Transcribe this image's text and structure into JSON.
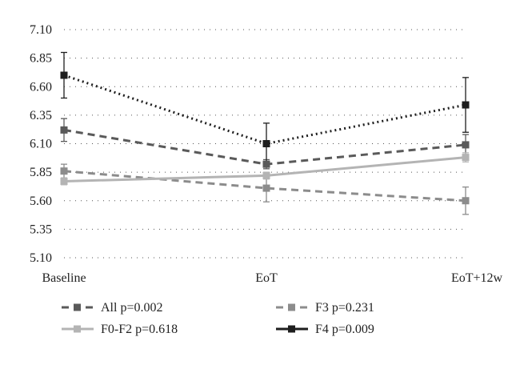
{
  "chart_data": {
    "type": "line",
    "categories": [
      "Baseline",
      "EoT",
      "EoT+12w"
    ],
    "ylim": [
      5.1,
      7.1
    ],
    "yticks": [
      "7.10",
      "6.85",
      "6.60",
      "6.35",
      "6.10",
      "5.85",
      "5.60",
      "5.35",
      "5.10"
    ],
    "grid": "horizontal dotted",
    "legend_position": "bottom",
    "series": [
      {
        "name": "All p=0.002",
        "values": [
          6.22,
          5.92,
          6.09
        ],
        "color": "#5a5a5a",
        "style": "dashed",
        "error": [
          [
            6.12,
            6.32
          ],
          [
            5.88,
            5.96
          ],
          [
            6.0,
            6.18
          ]
        ]
      },
      {
        "name": "F3 p=0.231",
        "values": [
          5.86,
          5.71,
          5.6
        ],
        "color": "#8c8c8c",
        "style": "dashed",
        "error": [
          [
            5.8,
            5.92
          ],
          [
            5.59,
            5.83
          ],
          [
            5.48,
            5.72
          ]
        ]
      },
      {
        "name": "F0-F2 p=0.618",
        "values": [
          5.77,
          5.82,
          5.98
        ],
        "color": "#b4b4b4",
        "style": "solid",
        "error": [
          [
            5.74,
            5.8
          ],
          [
            5.79,
            5.85
          ],
          [
            5.94,
            6.02
          ]
        ]
      },
      {
        "name": "F4 p=0.009",
        "values": [
          6.7,
          6.1,
          6.44
        ],
        "color": "#1e1e1e",
        "style": "dotted",
        "error": [
          [
            6.5,
            6.9
          ],
          [
            5.92,
            6.28
          ],
          [
            6.2,
            6.68
          ]
        ]
      }
    ]
  }
}
